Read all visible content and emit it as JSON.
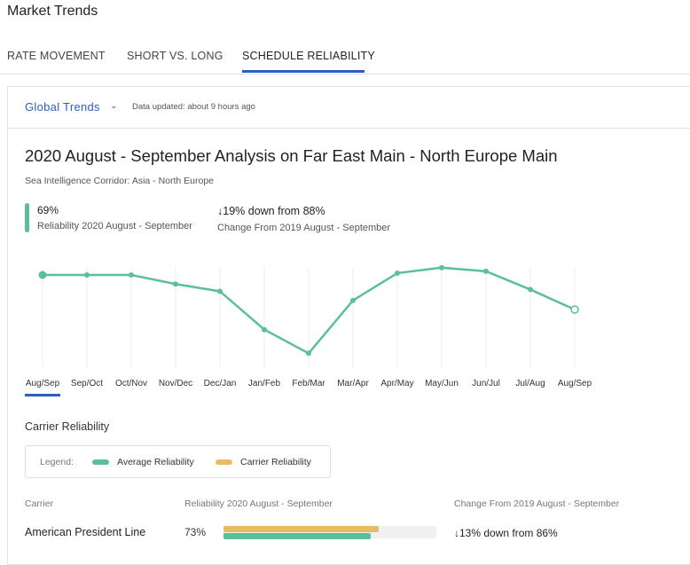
{
  "page": {
    "title": "Market Trends"
  },
  "tabs": [
    {
      "label": "RATE MOVEMENT"
    },
    {
      "label": "SHORT VS. LONG"
    },
    {
      "label": "SCHEDULE RELIABILITY",
      "active": true
    }
  ],
  "header": {
    "scope": "Global Trends",
    "updated": "Data updated: about 9 hours ago"
  },
  "analysis": {
    "title": "2020 August - September Analysis on Far East Main - North Europe Main",
    "subtitle": "Sea Intelligence Corridor: Asia - North Europe",
    "reliability_value": "69%",
    "reliability_label": "Reliability 2020 August - September",
    "change_value": "19% down from 88%",
    "change_label": "Change From 2019 August - September"
  },
  "icons": {
    "dropdown": "chevron-down-icon",
    "change": "arrow-down-icon"
  },
  "colors": {
    "accent": "#2b5fc7",
    "average": "#5bbf9a",
    "carrier": "#e9bc5f"
  },
  "chart_data": {
    "type": "line",
    "categories": [
      "Aug/Sep",
      "Sep/Oct",
      "Oct/Nov",
      "Nov/Dec",
      "Dec/Jan",
      "Jan/Feb",
      "Feb/Mar",
      "Mar/Apr",
      "Apr/May",
      "May/Jun",
      "Jun/Jul",
      "Jul/Aug",
      "Aug/Sep"
    ],
    "values": [
      88,
      88,
      88,
      83,
      79,
      58,
      45,
      74,
      89,
      92,
      90,
      80,
      69
    ],
    "selected_category_index": 0,
    "grid": "vertical",
    "color": "#5bbf9a"
  },
  "carrier_section": {
    "title": "Carrier Reliability",
    "legend": {
      "label": "Legend:",
      "average": "Average Reliability",
      "carrier": "Carrier Reliability"
    },
    "columns": [
      "Carrier",
      "Reliability 2020 August - September",
      "Change From 2019 August - September"
    ],
    "rows": [
      {
        "carrier": "American President Line",
        "reliability": "73%",
        "carrier_pct": 73,
        "average_pct": 69,
        "change": "13% down from 86%"
      }
    ]
  }
}
